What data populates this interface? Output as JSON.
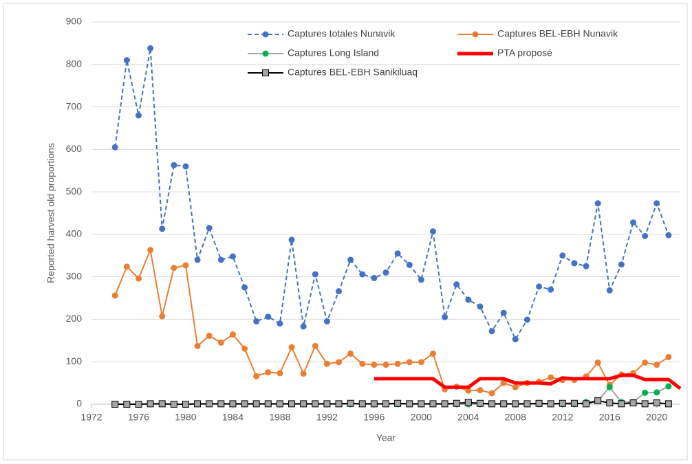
{
  "chart_data": {
    "type": "line",
    "y_label": "Reported harvest old proportions",
    "x_label": "Year",
    "xlim": [
      1972,
      2022
    ],
    "xticks": [
      1972,
      1976,
      1980,
      1984,
      1988,
      1992,
      1996,
      2000,
      2004,
      2008,
      2012,
      2016,
      2020
    ],
    "ylim": [
      0,
      900
    ],
    "yticks": [
      0,
      100,
      200,
      300,
      400,
      500,
      600,
      700,
      800,
      900
    ],
    "grid": true,
    "legend": "top",
    "x": [
      1974,
      1975,
      1976,
      1977,
      1978,
      1979,
      1980,
      1981,
      1982,
      1983,
      1984,
      1985,
      1986,
      1987,
      1988,
      1989,
      1990,
      1991,
      1992,
      1993,
      1994,
      1995,
      1996,
      1997,
      1998,
      1999,
      2000,
      2001,
      2002,
      2003,
      2004,
      2005,
      2006,
      2007,
      2008,
      2009,
      2010,
      2011,
      2012,
      2013,
      2014,
      2015,
      2016,
      2017,
      2018,
      2019,
      2020,
      2021
    ],
    "series": [
      {
        "name": "Captures totales Nunavik",
        "color": "#4472c4",
        "marker_color": "#4472c4",
        "marker": "circle",
        "line_style": "dashed",
        "values": [
          605,
          810,
          680,
          838,
          413,
          563,
          560,
          340,
          415,
          340,
          348,
          275,
          195,
          206,
          190,
          387,
          183,
          306,
          195,
          266,
          340,
          306,
          297,
          310,
          355,
          328,
          293,
          407,
          205,
          282,
          246,
          230,
          172,
          215,
          153,
          199,
          277,
          270,
          350,
          332,
          325,
          473,
          268,
          329,
          428,
          396,
          473,
          398
        ]
      },
      {
        "name": "Captures BEL-EBH Nunavik",
        "color": "#ed7d31",
        "marker_color": "#ed7d31",
        "marker": "circle",
        "line_style": "solid",
        "values": [
          256,
          324,
          296,
          363,
          207,
          321,
          327,
          137,
          161,
          145,
          164,
          131,
          66,
          75,
          73,
          134,
          72,
          137,
          95,
          99,
          119,
          95,
          93,
          93,
          95,
          99,
          99,
          119,
          35,
          41,
          32,
          33,
          26,
          50,
          40,
          50,
          53,
          63,
          57,
          57,
          65,
          98,
          45,
          70,
          73,
          98,
          93,
          111
        ]
      },
      {
        "name": "Captures Long Island",
        "color": "#a5a5a5",
        "marker_color": "#00b050",
        "marker": "circle",
        "line_style": "solid",
        "values": [
          0,
          0,
          0,
          0,
          0,
          0,
          0,
          0,
          0,
          0,
          0,
          0,
          0,
          0,
          0,
          0,
          0,
          0,
          0,
          0,
          0,
          0,
          0,
          0,
          0,
          0,
          0,
          0,
          0,
          0,
          0,
          0,
          0,
          0,
          0,
          0,
          0,
          0,
          0,
          0,
          5,
          8,
          40,
          5,
          5,
          27,
          28,
          42
        ]
      },
      {
        "name": "PTA proposé",
        "color": "#ff0000",
        "marker": "none",
        "line_style": "thick",
        "x": [
          1996,
          1997,
          1998,
          1999,
          2000,
          2001,
          2002,
          2003,
          2004,
          2005,
          2006,
          2007,
          2008,
          2009,
          2010,
          2011,
          2012,
          2013,
          2014,
          2015,
          2016,
          2017,
          2018,
          2019,
          2020,
          2021,
          2022
        ],
        "values": [
          60,
          60,
          60,
          60,
          60,
          60,
          40,
          40,
          40,
          60,
          60,
          60,
          50,
          50,
          50,
          48,
          62,
          60,
          60,
          60,
          60,
          68,
          68,
          58,
          58,
          58,
          37
        ]
      },
      {
        "name": "Captures BEL-EBH Sanikiluaq",
        "color": "#000000",
        "marker_color": "#a5a5a5",
        "marker": "square",
        "line_style": "solid",
        "values": [
          0,
          0,
          0,
          1,
          1,
          0,
          0,
          1,
          1,
          1,
          1,
          1,
          1,
          1,
          1,
          1,
          1,
          1,
          1,
          1,
          2,
          1,
          1,
          1,
          2,
          1,
          1,
          1,
          1,
          2,
          4,
          2,
          1,
          1,
          1,
          1,
          2,
          1,
          2,
          2,
          1,
          8,
          3,
          1,
          3,
          1,
          3,
          1
        ]
      }
    ]
  }
}
